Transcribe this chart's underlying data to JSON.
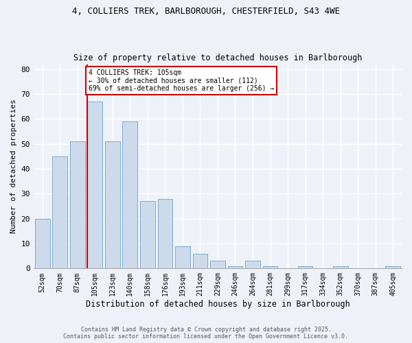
{
  "title1": "4, COLLIERS TREK, BARLBOROUGH, CHESTERFIELD, S43 4WE",
  "title2": "Size of property relative to detached houses in Barlborough",
  "xlabel": "Distribution of detached houses by size in Barlborough",
  "ylabel": "Number of detached properties",
  "categories": [
    "52sqm",
    "70sqm",
    "87sqm",
    "105sqm",
    "123sqm",
    "140sqm",
    "158sqm",
    "176sqm",
    "193sqm",
    "211sqm",
    "229sqm",
    "246sqm",
    "264sqm",
    "281sqm",
    "299sqm",
    "317sqm",
    "334sqm",
    "352sqm",
    "370sqm",
    "387sqm",
    "405sqm"
  ],
  "values": [
    20,
    45,
    51,
    67,
    51,
    59,
    27,
    28,
    9,
    6,
    3,
    1,
    3,
    1,
    0,
    1,
    0,
    1,
    0,
    0,
    1
  ],
  "bar_color": "#ccdaeb",
  "bar_edge_color": "#7aadcf",
  "highlight_index": 3,
  "highlight_line_color": "#cc0000",
  "annotation_text": "4 COLLIERS TREK: 105sqm\n← 30% of detached houses are smaller (112)\n69% of semi-detached houses are larger (256) →",
  "annotation_box_color": "#cc0000",
  "ylim": [
    0,
    82
  ],
  "yticks": [
    0,
    10,
    20,
    30,
    40,
    50,
    60,
    70,
    80
  ],
  "footer_line1": "Contains HM Land Registry data © Crown copyright and database right 2025.",
  "footer_line2": "Contains public sector information licensed under the Open Government Licence v3.0.",
  "bg_color": "#eef2f8",
  "plot_bg_color": "#eef2f8",
  "grid_color": "#ffffff"
}
